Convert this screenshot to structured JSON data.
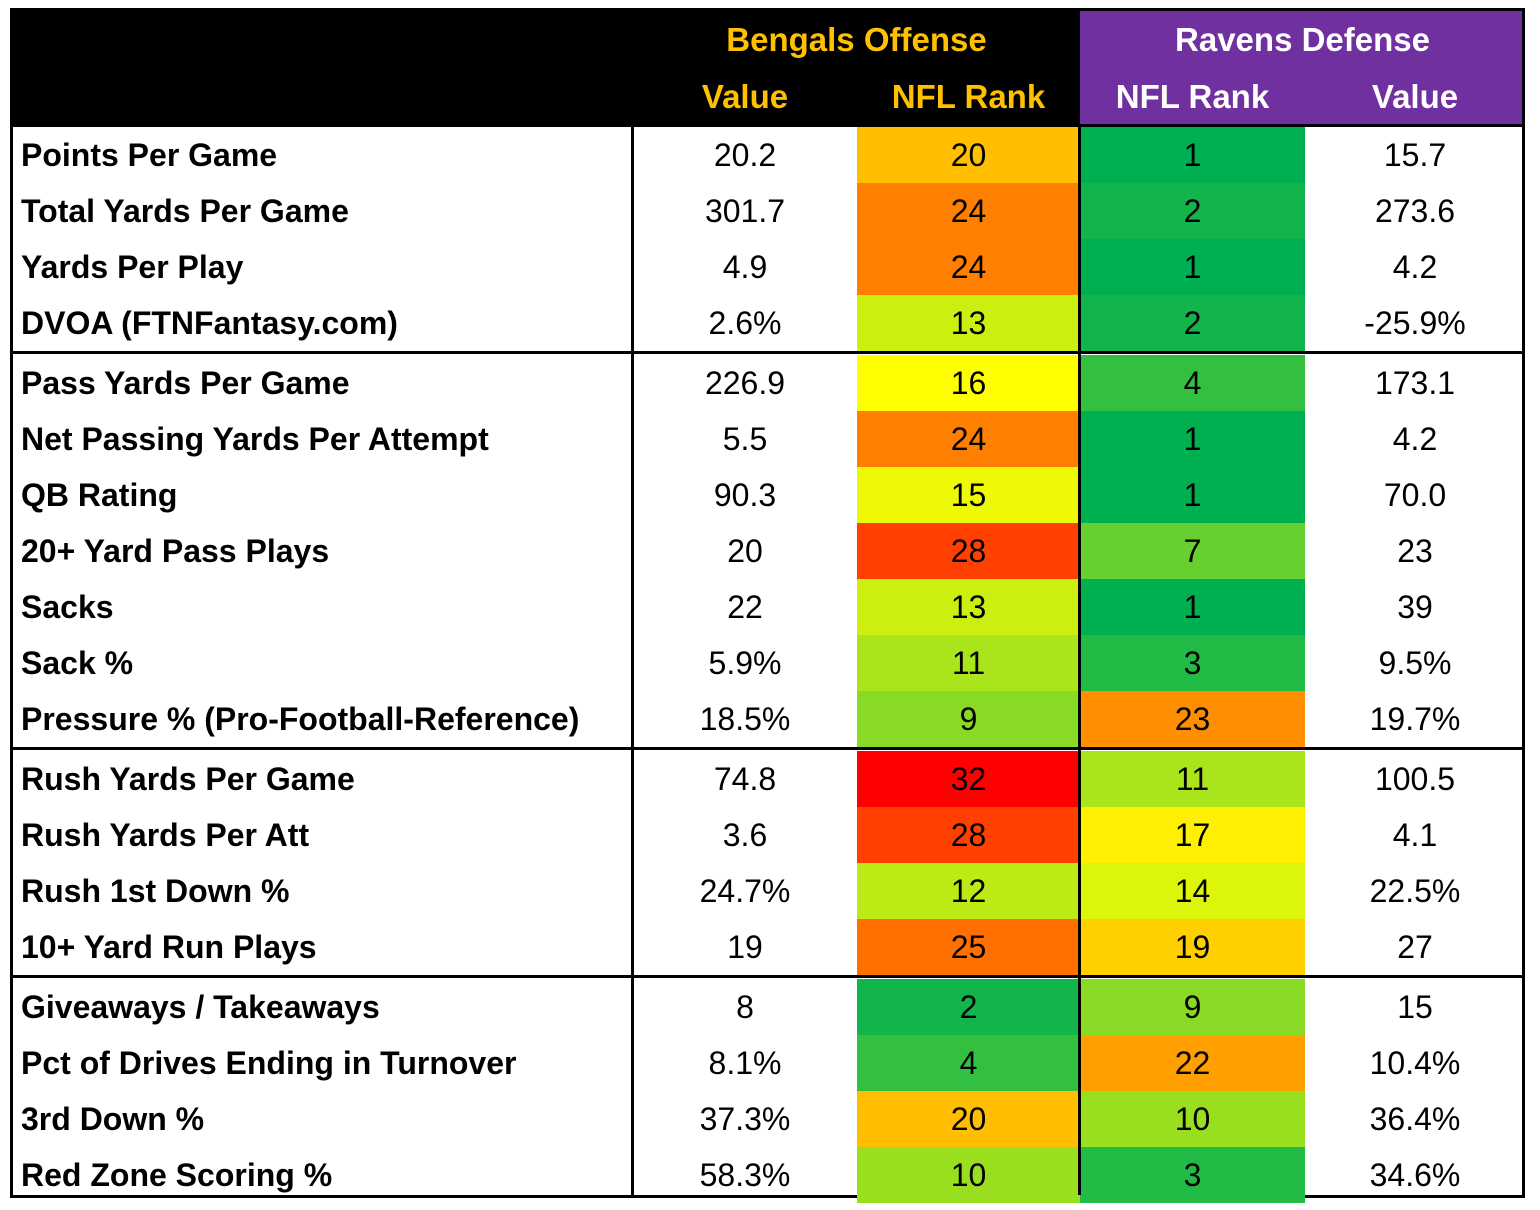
{
  "header": {
    "offense_title": "Bengals Offense",
    "defense_title": "Ravens Defense",
    "offense_value_label": "Value",
    "offense_rank_label": "NFL Rank",
    "defense_rank_label": "NFL Rank",
    "defense_value_label": "Value"
  },
  "colors": {
    "offense_header_text": "#ffc000",
    "defense_header_text": "#ffffff",
    "defense_header_bg": "#7030a0",
    "rank_scale_best": "#00b050",
    "rank_scale_mid": "#ffff00",
    "rank_scale_worst": "#ff0000"
  },
  "rows": [
    {
      "label": "Points Per Game",
      "off_value": "20.2",
      "off_rank": "20",
      "def_rank": "1",
      "def_value": "15.7"
    },
    {
      "label": "Total Yards Per Game",
      "off_value": "301.7",
      "off_rank": "24",
      "def_rank": "2",
      "def_value": "273.6"
    },
    {
      "label": "Yards Per Play",
      "off_value": "4.9",
      "off_rank": "24",
      "def_rank": "1",
      "def_value": "4.2"
    },
    {
      "label": "DVOA (FTNFantasy.com)",
      "off_value": "2.6%",
      "off_rank": "13",
      "def_rank": "2",
      "def_value": "-25.9%"
    },
    {
      "label": "Pass Yards Per Game",
      "off_value": "226.9",
      "off_rank": "16",
      "def_rank": "4",
      "def_value": "173.1"
    },
    {
      "label": "Net Passing Yards Per Attempt",
      "off_value": "5.5",
      "off_rank": "24",
      "def_rank": "1",
      "def_value": "4.2"
    },
    {
      "label": "QB Rating",
      "off_value": "90.3",
      "off_rank": "15",
      "def_rank": "1",
      "def_value": "70.0"
    },
    {
      "label": "20+ Yard Pass Plays",
      "off_value": "20",
      "off_rank": "28",
      "def_rank": "7",
      "def_value": "23"
    },
    {
      "label": "Sacks",
      "off_value": "22",
      "off_rank": "13",
      "def_rank": "1",
      "def_value": "39"
    },
    {
      "label": "Sack %",
      "off_value": "5.9%",
      "off_rank": "11",
      "def_rank": "3",
      "def_value": "9.5%"
    },
    {
      "label": "Pressure % (Pro-Football-Reference)",
      "off_value": "18.5%",
      "off_rank": "9",
      "def_rank": "23",
      "def_value": "19.7%"
    },
    {
      "label": "Rush Yards Per Game",
      "off_value": "74.8",
      "off_rank": "32",
      "def_rank": "11",
      "def_value": "100.5"
    },
    {
      "label": "Rush Yards Per Att",
      "off_value": "3.6",
      "off_rank": "28",
      "def_rank": "17",
      "def_value": "4.1"
    },
    {
      "label": "Rush 1st Down %",
      "off_value": "24.7%",
      "off_rank": "12",
      "def_rank": "14",
      "def_value": "22.5%"
    },
    {
      "label": "10+ Yard Run Plays",
      "off_value": "19",
      "off_rank": "25",
      "def_rank": "19",
      "def_value": "27"
    },
    {
      "label": "Giveaways / Takeaways",
      "off_value": "8",
      "off_rank": "2",
      "def_rank": "9",
      "def_value": "15"
    },
    {
      "label": "Pct of Drives Ending in Turnover",
      "off_value": "8.1%",
      "off_rank": "4",
      "def_rank": "22",
      "def_value": "10.4%"
    },
    {
      "label": "3rd Down %",
      "off_value": "37.3%",
      "off_rank": "20",
      "def_rank": "10",
      "def_value": "36.4%"
    },
    {
      "label": "Red Zone Scoring %",
      "off_value": "58.3%",
      "off_rank": "10",
      "def_rank": "3",
      "def_value": "34.6%"
    }
  ],
  "section_breaks_after_row": [
    3,
    10,
    14
  ]
}
